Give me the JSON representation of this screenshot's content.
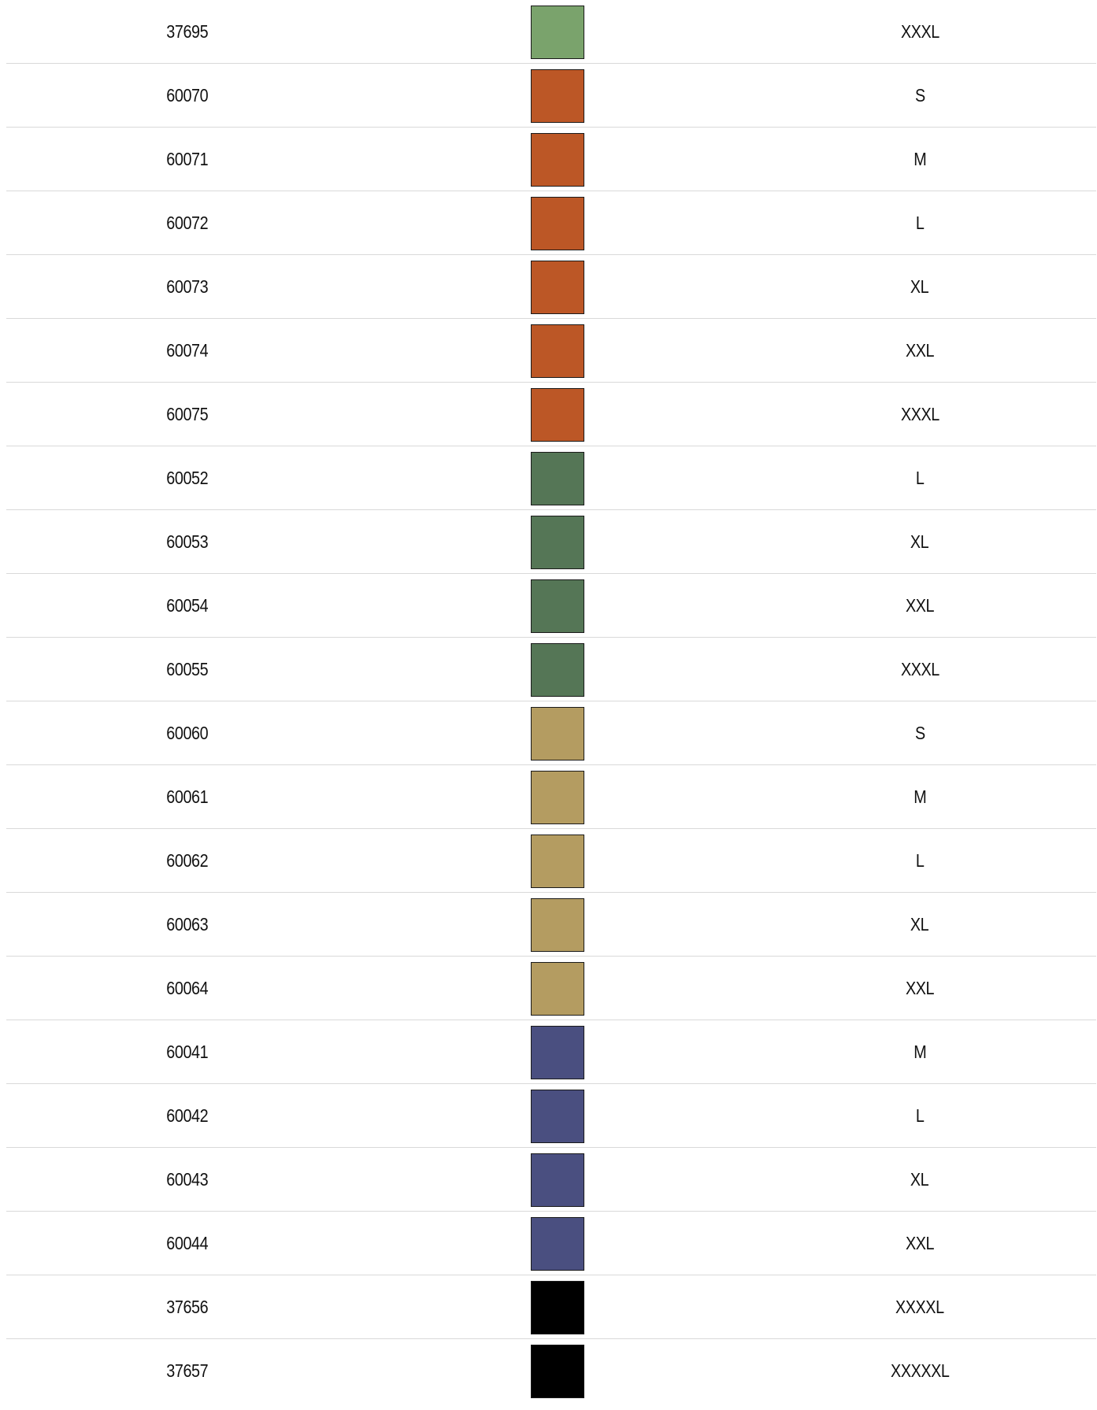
{
  "rows": [
    {
      "sku": "37695",
      "color": "#7aa36c",
      "size": "XXXL"
    },
    {
      "sku": "60070",
      "color": "#bc5726",
      "size": "S"
    },
    {
      "sku": "60071",
      "color": "#bc5726",
      "size": "M"
    },
    {
      "sku": "60072",
      "color": "#bc5726",
      "size": "L"
    },
    {
      "sku": "60073",
      "color": "#bc5726",
      "size": "XL"
    },
    {
      "sku": "60074",
      "color": "#bc5726",
      "size": "XXL"
    },
    {
      "sku": "60075",
      "color": "#bc5726",
      "size": "XXXL"
    },
    {
      "sku": "60052",
      "color": "#557656",
      "size": "L"
    },
    {
      "sku": "60053",
      "color": "#557656",
      "size": "XL"
    },
    {
      "sku": "60054",
      "color": "#557656",
      "size": "XXL"
    },
    {
      "sku": "60055",
      "color": "#557656",
      "size": "XXXL"
    },
    {
      "sku": "60060",
      "color": "#b49c61",
      "size": "S"
    },
    {
      "sku": "60061",
      "color": "#b49c61",
      "size": "M"
    },
    {
      "sku": "60062",
      "color": "#b49c61",
      "size": "L"
    },
    {
      "sku": "60063",
      "color": "#b49c61",
      "size": "XL"
    },
    {
      "sku": "60064",
      "color": "#b49c61",
      "size": "XXL"
    },
    {
      "sku": "60041",
      "color": "#4a4f80",
      "size": "M"
    },
    {
      "sku": "60042",
      "color": "#4a4f80",
      "size": "L"
    },
    {
      "sku": "60043",
      "color": "#4a4f80",
      "size": "XL"
    },
    {
      "sku": "60044",
      "color": "#4a4f80",
      "size": "XXL"
    },
    {
      "sku": "37656",
      "color": "#000000",
      "size": "XXXXL"
    },
    {
      "sku": "37657",
      "color": "#000000",
      "size": "XXXXXL"
    }
  ]
}
